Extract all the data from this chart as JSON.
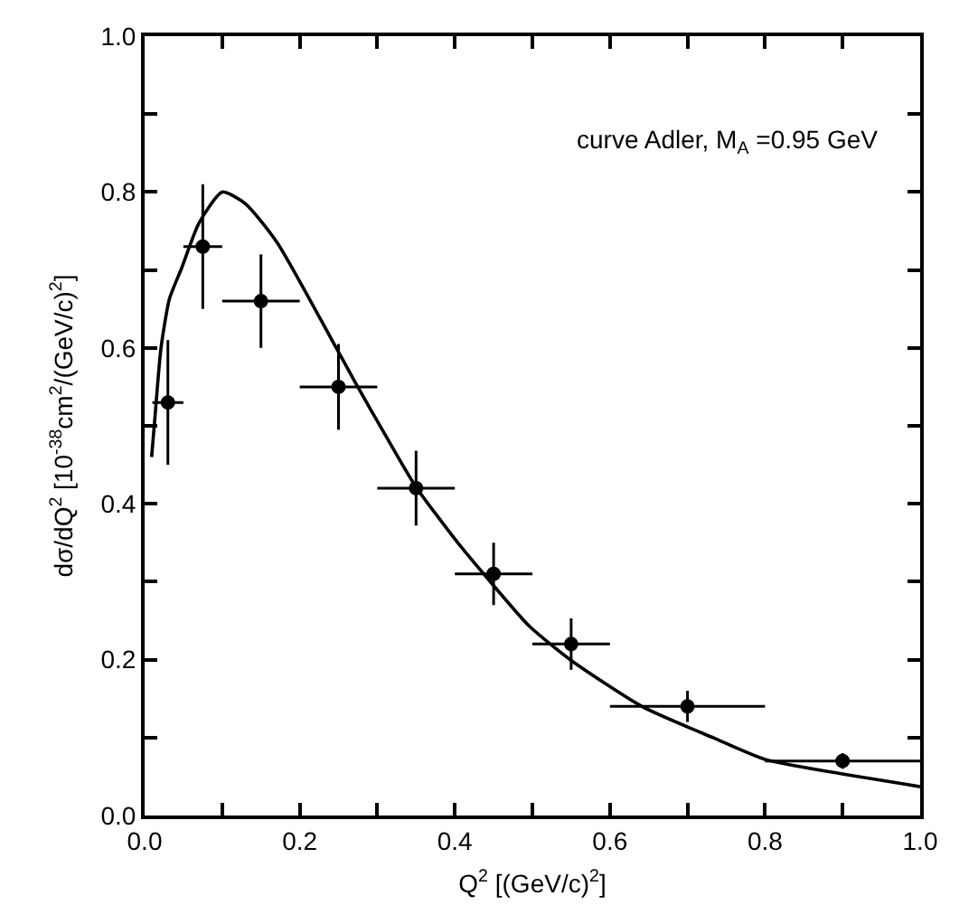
{
  "chart_data": {
    "type": "scatter",
    "xlabel": "Q$^{2}$ [(GeV/c)$^{2}$]",
    "ylabel": "dσ/dQ$^{2}$ [10$^{-38}$cm$^{2}$/(GeV/c)$^{2}$]",
    "annotations": [
      "curve Adler, M$_{A}$ =0.95 GeV"
    ],
    "xlim": [
      0,
      1.0
    ],
    "ylim": [
      0,
      1.0
    ],
    "xticks": [
      {
        "value": 0,
        "label": "0.0"
      },
      {
        "value": 0.1,
        "label": null
      },
      {
        "value": 0.2,
        "label": "0.2"
      },
      {
        "value": 0.3,
        "label": null
      },
      {
        "value": 0.4,
        "label": "0.4"
      },
      {
        "value": 0.5,
        "label": null
      },
      {
        "value": 0.6,
        "label": "0.6"
      },
      {
        "value": 0.7,
        "label": null
      },
      {
        "value": 0.8,
        "label": "0.8"
      },
      {
        "value": 0.9,
        "label": null
      },
      {
        "value": 1.0,
        "label": "1.0"
      }
    ],
    "yticks": [
      {
        "value": 0,
        "label": "0.0"
      },
      {
        "value": 0.1,
        "label": null
      },
      {
        "value": 0.2,
        "label": "0.2"
      },
      {
        "value": 0.3,
        "label": null
      },
      {
        "value": 0.4,
        "label": "0.4"
      },
      {
        "value": 0.5,
        "label": null
      },
      {
        "value": 0.6,
        "label": "0.6"
      },
      {
        "value": 0.7,
        "label": null
      },
      {
        "value": 0.8,
        "label": "0.8"
      },
      {
        "value": 0.9,
        "label": null
      },
      {
        "value": 1.0,
        "label": "1.0"
      }
    ],
    "grid": false,
    "marker": "circle",
    "series": [
      {
        "color": "#000000",
        "x": [
          0.03,
          0.075,
          0.15,
          0.25,
          0.35,
          0.45,
          0.55,
          0.7,
          0.9
        ],
        "values": [
          0.53,
          0.73,
          0.66,
          0.55,
          0.42,
          0.31,
          0.22,
          0.14,
          0.07
        ],
        "errors": [
          0.08,
          0.08,
          0.06,
          0.055,
          0.048,
          0.04,
          0.033,
          0.02,
          0.01
        ],
        "xerrors": [
          0.02,
          0.025,
          0.05,
          0.05,
          0.05,
          0.05,
          0.05,
          0.1,
          0.1
        ]
      },
      {
        "type": "line",
        "color": "#000000",
        "line_style": "solid",
        "marker": "none",
        "x": [
          0.009,
          0.013,
          0.021,
          0.032,
          0.048,
          0.07,
          0.1,
          0.13,
          0.171,
          0.241,
          0.272,
          0.311,
          0.349,
          0.403,
          0.45,
          0.496,
          0.55,
          0.643,
          0.735,
          0.8,
          0.89,
          1.0
        ],
        "values": [
          0.46,
          0.507,
          0.599,
          0.663,
          0.703,
          0.76,
          0.8,
          0.785,
          0.735,
          0.611,
          0.555,
          0.487,
          0.423,
          0.351,
          0.295,
          0.243,
          0.199,
          0.139,
          0.099,
          0.072,
          0.055,
          0.037
        ]
      }
    ]
  }
}
